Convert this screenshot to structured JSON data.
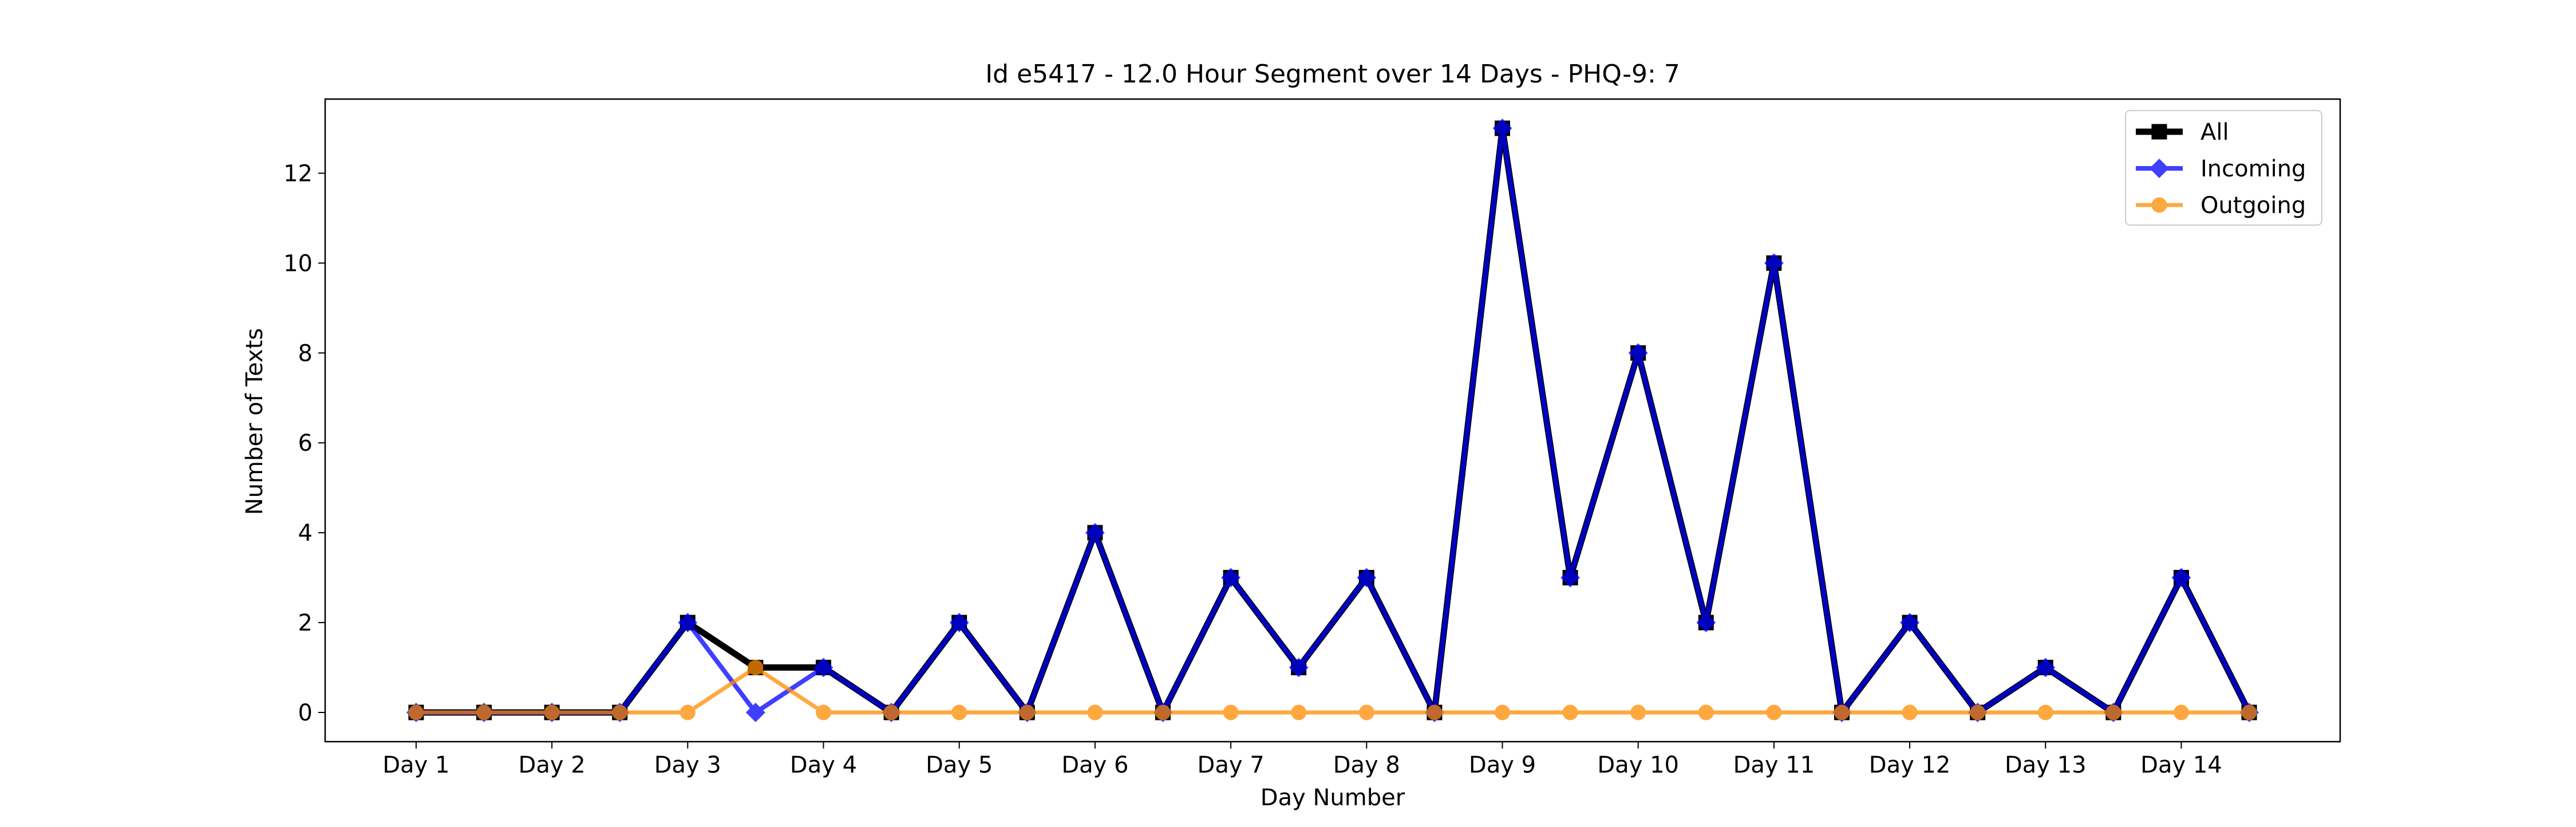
{
  "chart_data": {
    "type": "line",
    "title": "Id e5417 - 12.0 Hour Segment over 14 Days - PHQ-9: 7",
    "xlabel": "Day Number",
    "ylabel": "Number of Texts",
    "x": [
      1,
      1.5,
      2,
      2.5,
      3,
      3.5,
      4,
      4.5,
      5,
      5.5,
      6,
      6.5,
      7,
      7.5,
      8,
      8.5,
      9,
      9.5,
      10,
      10.5,
      11,
      11.5,
      12,
      12.5,
      13,
      13.5,
      14,
      14.5
    ],
    "xticks": [
      1,
      2,
      3,
      4,
      5,
      6,
      7,
      8,
      9,
      10,
      11,
      12,
      13,
      14
    ],
    "xtick_labels": [
      "Day 1",
      "Day 2",
      "Day 3",
      "Day 4",
      "Day 5",
      "Day 6",
      "Day 7",
      "Day 8",
      "Day 9",
      "Day 10",
      "Day 11",
      "Day 12",
      "Day 13",
      "Day 14"
    ],
    "yticks": [
      0,
      2,
      4,
      6,
      8,
      10,
      12
    ],
    "xlim": [
      0.33,
      15.17
    ],
    "ylim": [
      -0.65,
      13.65
    ],
    "grid": false,
    "legend_position": "top-right",
    "series": [
      {
        "name": "All",
        "color": "#000000",
        "marker": "square",
        "values": [
          0,
          0,
          0,
          0,
          2,
          1,
          1,
          0,
          2,
          0,
          4,
          0,
          3,
          1,
          3,
          0,
          13,
          3,
          8,
          2,
          10,
          0,
          2,
          0,
          1,
          0,
          3,
          0
        ]
      },
      {
        "name": "Incoming",
        "color": "#0000ff",
        "marker": "diamond",
        "values": [
          0,
          0,
          0,
          0,
          2,
          0,
          1,
          0,
          2,
          0,
          4,
          0,
          3,
          1,
          3,
          0,
          13,
          3,
          8,
          2,
          10,
          0,
          2,
          0,
          1,
          0,
          3,
          0
        ]
      },
      {
        "name": "Outgoing",
        "color": "#ff8c00",
        "marker": "circle",
        "values": [
          0,
          0,
          0,
          0,
          0,
          1,
          0,
          0,
          0,
          0,
          0,
          0,
          0,
          0,
          0,
          0,
          0,
          0,
          0,
          0,
          0,
          0,
          0,
          0,
          0,
          0,
          0,
          0
        ]
      }
    ]
  }
}
